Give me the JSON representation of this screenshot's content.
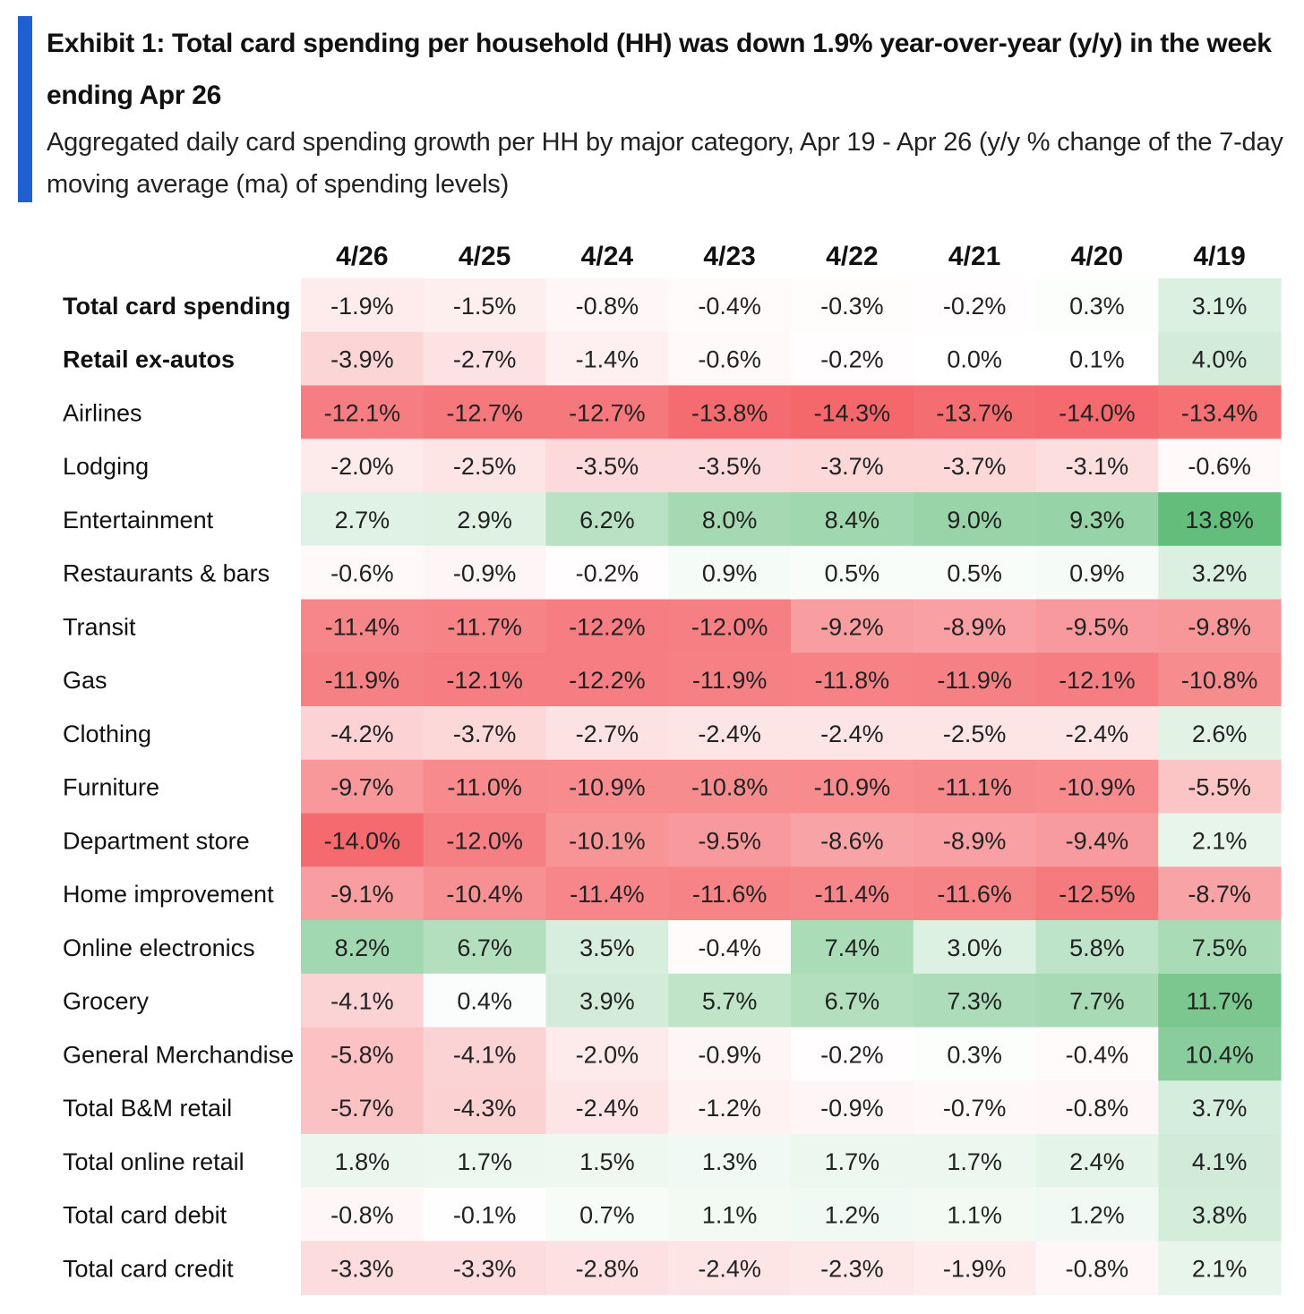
{
  "title": "Exhibit 1: Total card spending per household (HH) was down 1.9% year-over-year (y/y) in the week ending Apr 26",
  "subtitle": "Aggregated daily card spending growth per HH by major category, Apr 19 - Apr 26 (y/y % change of the 7-day moving average (ma) of spending levels)",
  "colors": {
    "accent": "#1f5fd1",
    "negative_max": "#f4676b",
    "neutral": "#ffffff",
    "positive_max": "#63bd7b"
  },
  "chart_data": {
    "type": "heatmap",
    "columns": [
      "4/26",
      "4/25",
      "4/24",
      "4/23",
      "4/22",
      "4/21",
      "4/20",
      "4/19"
    ],
    "rows": [
      {
        "label": "Total card spending",
        "bold": true,
        "display": [
          "-1.9%",
          "-1.5%",
          "-0.8%",
          "-0.4%",
          "-0.3%",
          "-0.2%",
          "0.3%",
          "3.1%"
        ],
        "values": [
          -1.9,
          -1.5,
          -0.8,
          -0.4,
          -0.3,
          -0.2,
          0.3,
          3.1
        ]
      },
      {
        "label": "Retail ex-autos",
        "bold": true,
        "display": [
          "-3.9%",
          "-2.7%",
          "-1.4%",
          "-0.6%",
          "-0.2%",
          "0.0%",
          "0.1%",
          "4.0%"
        ],
        "values": [
          -3.9,
          -2.7,
          -1.4,
          -0.6,
          -0.2,
          0.0,
          0.1,
          4.0
        ]
      },
      {
        "label": "Airlines",
        "bold": false,
        "display": [
          "-12.1%",
          "-12.7%",
          "-12.7%",
          "-13.8%",
          "-14.3%",
          "-13.7%",
          "-14.0%",
          "-13.4%"
        ],
        "values": [
          -12.1,
          -12.7,
          -12.7,
          -13.8,
          -14.3,
          -13.7,
          -14.0,
          -13.4
        ]
      },
      {
        "label": "Lodging",
        "bold": false,
        "display": [
          "-2.0%",
          "-2.5%",
          "-3.5%",
          "-3.5%",
          "-3.7%",
          "-3.7%",
          "-3.1%",
          "-0.6%"
        ],
        "values": [
          -2.0,
          -2.5,
          -3.5,
          -3.5,
          -3.7,
          -3.7,
          -3.1,
          -0.6
        ]
      },
      {
        "label": "Entertainment",
        "bold": false,
        "display": [
          "2.7%",
          "2.9%",
          "6.2%",
          "8.0%",
          "8.4%",
          "9.0%",
          "9.3%",
          "13.8%"
        ],
        "values": [
          2.7,
          2.9,
          6.2,
          8.0,
          8.4,
          9.0,
          9.3,
          13.8
        ]
      },
      {
        "label": "Restaurants & bars",
        "bold": false,
        "display": [
          "-0.6%",
          "-0.9%",
          "-0.2%",
          "0.9%",
          "0.5%",
          "0.5%",
          "0.9%",
          "3.2%"
        ],
        "values": [
          -0.6,
          -0.9,
          -0.2,
          0.9,
          0.5,
          0.5,
          0.9,
          3.2
        ]
      },
      {
        "label": "Transit",
        "bold": false,
        "display": [
          "-11.4%",
          "-11.7%",
          "-12.2%",
          "-12.0%",
          "-9.2%",
          "-8.9%",
          "-9.5%",
          "-9.8%"
        ],
        "values": [
          -11.4,
          -11.7,
          -12.2,
          -12.0,
          -9.2,
          -8.9,
          -9.5,
          -9.8
        ]
      },
      {
        "label": "Gas",
        "bold": false,
        "display": [
          "-11.9%",
          "-12.1%",
          "-12.2%",
          "-11.9%",
          "-11.8%",
          "-11.9%",
          "-12.1%",
          "-10.8%"
        ],
        "values": [
          -11.9,
          -12.1,
          -12.2,
          -11.9,
          -11.8,
          -11.9,
          -12.1,
          -10.8
        ]
      },
      {
        "label": "Clothing",
        "bold": false,
        "display": [
          "-4.2%",
          "-3.7%",
          "-2.7%",
          "-2.4%",
          "-2.4%",
          "-2.5%",
          "-2.4%",
          "2.6%"
        ],
        "values": [
          -4.2,
          -3.7,
          -2.7,
          -2.4,
          -2.4,
          -2.5,
          -2.4,
          2.6
        ]
      },
      {
        "label": "Furniture",
        "bold": false,
        "display": [
          "-9.7%",
          "-11.0%",
          "-10.9%",
          "-10.8%",
          "-10.9%",
          "-11.1%",
          "-10.9%",
          "-5.5%"
        ],
        "values": [
          -9.7,
          -11.0,
          -10.9,
          -10.8,
          -10.9,
          -11.1,
          -10.9,
          -5.5
        ]
      },
      {
        "label": "Department store",
        "bold": false,
        "display": [
          "-14.0%",
          "-12.0%",
          "-10.1%",
          "-9.5%",
          "-8.6%",
          "-8.9%",
          "-9.4%",
          "2.1%"
        ],
        "values": [
          -14.0,
          -12.0,
          -10.1,
          -9.5,
          -8.6,
          -8.9,
          -9.4,
          2.1
        ]
      },
      {
        "label": "Home improvement",
        "bold": false,
        "display": [
          "-9.1%",
          "-10.4%",
          "-11.4%",
          "-11.6%",
          "-11.4%",
          "-11.6%",
          "-12.5%",
          "-8.7%"
        ],
        "values": [
          -9.1,
          -10.4,
          -11.4,
          -11.6,
          -11.4,
          -11.6,
          -12.5,
          -8.7
        ]
      },
      {
        "label": "Online electronics",
        "bold": false,
        "display": [
          "8.2%",
          "6.7%",
          "3.5%",
          "-0.4%",
          "7.4%",
          "3.0%",
          "5.8%",
          "7.5%"
        ],
        "values": [
          8.2,
          6.7,
          3.5,
          -0.4,
          7.4,
          3.0,
          5.8,
          7.5
        ]
      },
      {
        "label": "Grocery",
        "bold": false,
        "display": [
          "-4.1%",
          "0.4%",
          "3.9%",
          "5.7%",
          "6.7%",
          "7.3%",
          "7.7%",
          "11.7%"
        ],
        "values": [
          -4.1,
          0.4,
          3.9,
          5.7,
          6.7,
          7.3,
          7.7,
          11.7
        ]
      },
      {
        "label": "General Merchandise",
        "bold": false,
        "display": [
          "-5.8%",
          "-4.1%",
          "-2.0%",
          "-0.9%",
          "-0.2%",
          "0.3%",
          "-0.4%",
          "10.4%"
        ],
        "values": [
          -5.8,
          -4.1,
          -2.0,
          -0.9,
          -0.2,
          0.3,
          -0.4,
          10.4
        ]
      },
      {
        "label": "Total B&M retail",
        "bold": false,
        "display": [
          "-5.7%",
          "-4.3%",
          "-2.4%",
          "-1.2%",
          "-0.9%",
          "-0.7%",
          "-0.8%",
          "3.7%"
        ],
        "values": [
          -5.7,
          -4.3,
          -2.4,
          -1.2,
          -0.9,
          -0.7,
          -0.8,
          3.7
        ]
      },
      {
        "label": "Total online retail",
        "bold": false,
        "display": [
          "1.8%",
          "1.7%",
          "1.5%",
          "1.3%",
          "1.7%",
          "1.7%",
          "2.4%",
          "4.1%"
        ],
        "values": [
          1.8,
          1.7,
          1.5,
          1.3,
          1.7,
          1.7,
          2.4,
          4.1
        ]
      },
      {
        "label": "Total card debit",
        "bold": false,
        "display": [
          "-0.8%",
          "-0.1%",
          "0.7%",
          "1.1%",
          "1.2%",
          "1.1%",
          "1.2%",
          "3.8%"
        ],
        "values": [
          -0.8,
          -0.1,
          0.7,
          1.1,
          1.2,
          1.1,
          1.2,
          3.8
        ]
      },
      {
        "label": "Total card credit",
        "bold": false,
        "display": [
          "-3.3%",
          "-3.3%",
          "-2.8%",
          "-2.4%",
          "-2.3%",
          "-1.9%",
          "-0.8%",
          "2.1%"
        ],
        "values": [
          -3.3,
          -3.3,
          -2.8,
          -2.4,
          -2.3,
          -1.9,
          -0.8,
          2.1
        ]
      }
    ]
  }
}
